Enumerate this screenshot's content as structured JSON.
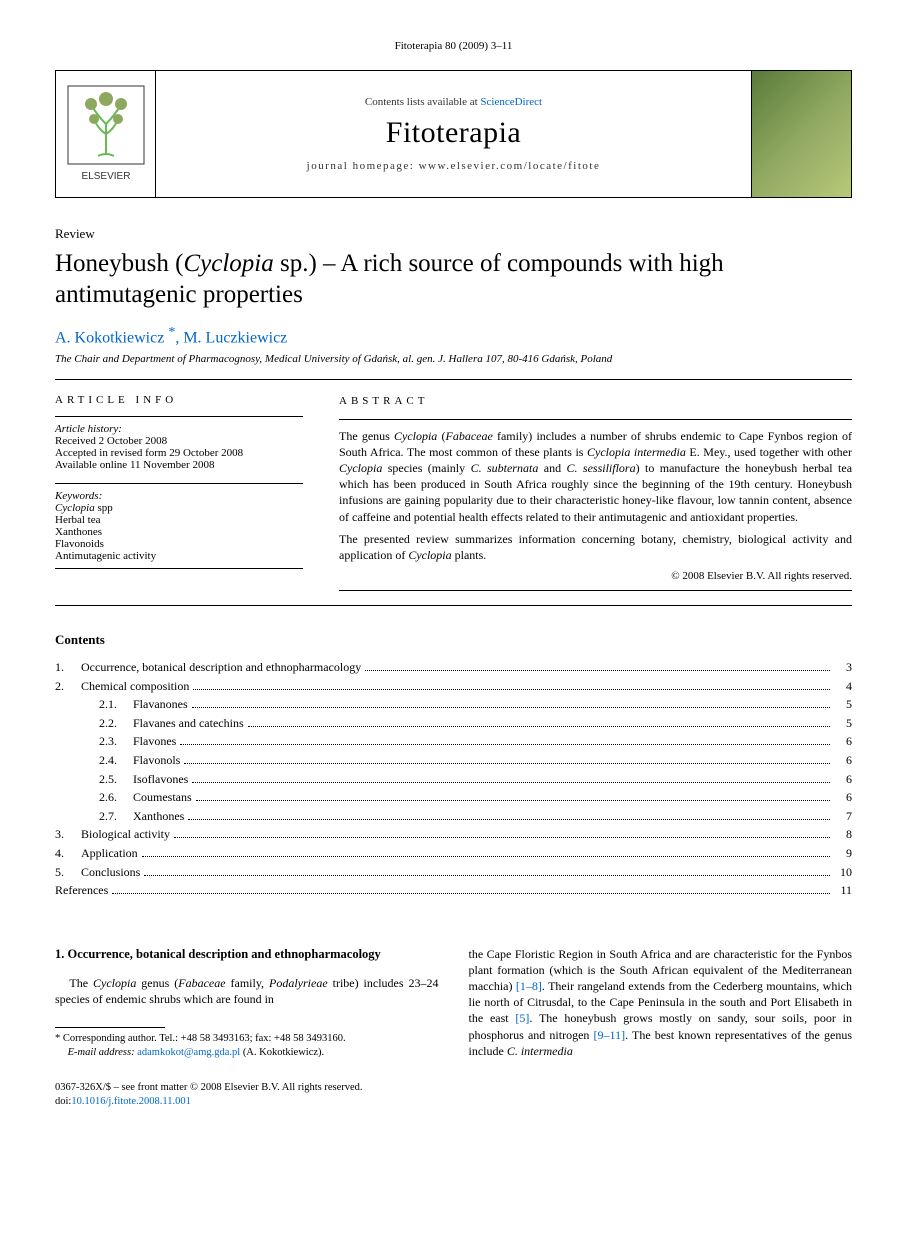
{
  "running_head": "Fitoterapia 80 (2009) 3–11",
  "header": {
    "contents_prefix": "Contents lists available at ",
    "contents_link": "ScienceDirect",
    "journal_name": "Fitoterapia",
    "homepage_label": "journal homepage: www.elsevier.com/locate/fitote",
    "publisher_label": "ELSEVIER"
  },
  "article": {
    "type": "Review",
    "title_pre": "Honeybush (",
    "title_ital": "Cyclopia",
    "title_post": " sp.) – A rich source of compounds with high antimutagenic properties",
    "author1": "A. Kokotkiewicz ",
    "author2": ", M. Luczkiewicz",
    "corr_star": "*",
    "affiliation": "The Chair and Department of Pharmacognosy, Medical University of Gdańsk, al. gen. J. Hallera 107, 80-416 Gdańsk, Poland"
  },
  "info": {
    "head": "ARTICLE INFO",
    "history_label": "Article history:",
    "received": "Received 2 October 2008",
    "accepted": "Accepted in revised form 29 October 2008",
    "online": "Available online 11 November 2008",
    "keywords_label": "Keywords:",
    "kw1_pre": "Cyclopia",
    "kw1_post": " spp",
    "kw2": "Herbal tea",
    "kw3": "Xanthones",
    "kw4": "Flavonoids",
    "kw5": "Antimutagenic activity"
  },
  "abstract": {
    "head": "ABSTRACT",
    "p1_a": "The genus ",
    "p1_b": "Cyclopia",
    "p1_c": " (",
    "p1_d": "Fabaceae",
    "p1_e": " family) includes a number of shrubs endemic to Cape Fynbos region of South Africa. The most common of these plants is ",
    "p1_f": "Cyclopia intermedia",
    "p1_g": " E. Mey., used together with other ",
    "p1_h": "Cyclopia",
    "p1_i": " species (mainly ",
    "p1_j": "C. subternata",
    "p1_k": " and ",
    "p1_l": "C. sessiliflora",
    "p1_m": ") to manufacture the honeybush herbal tea which has been produced in South Africa roughly since the beginning of the 19th century. Honeybush infusions are gaining popularity due to their characteristic honey-like flavour, low tannin content, absence of caffeine and potential health effects related to their antimutagenic and antioxidant properties.",
    "p2_a": "The presented review summarizes information concerning botany, chemistry, biological activity and application of ",
    "p2_b": "Cyclopia",
    "p2_c": " plants.",
    "copyright": "© 2008 Elsevier B.V. All rights reserved."
  },
  "contents": {
    "title": "Contents",
    "rows": [
      {
        "num": "1.",
        "label": "Occurrence, botanical description and ethnopharmacology",
        "page": "3",
        "sub": false
      },
      {
        "num": "2.",
        "label": "Chemical composition",
        "page": "4",
        "sub": false
      },
      {
        "num": "2.1.",
        "label": "Flavanones",
        "page": "5",
        "sub": true
      },
      {
        "num": "2.2.",
        "label": "Flavanes and catechins",
        "page": "5",
        "sub": true
      },
      {
        "num": "2.3.",
        "label": "Flavones",
        "page": "6",
        "sub": true
      },
      {
        "num": "2.4.",
        "label": "Flavonols",
        "page": "6",
        "sub": true
      },
      {
        "num": "2.5.",
        "label": "Isoflavones",
        "page": "6",
        "sub": true
      },
      {
        "num": "2.6.",
        "label": "Coumestans",
        "page": "6",
        "sub": true
      },
      {
        "num": "2.7.",
        "label": "Xanthones",
        "page": "7",
        "sub": true
      },
      {
        "num": "3.",
        "label": "Biological activity",
        "page": "8",
        "sub": false
      },
      {
        "num": "4.",
        "label": "Application",
        "page": "9",
        "sub": false
      },
      {
        "num": "5.",
        "label": "Conclusions",
        "page": "10",
        "sub": false
      },
      {
        "num": "",
        "label": "References",
        "page": "11",
        "sub": false
      }
    ]
  },
  "body": {
    "sec_head": "1. Occurrence, botanical description and ethnopharmacology",
    "left_a": "The ",
    "left_b": "Cyclopia",
    "left_c": " genus (",
    "left_d": "Fabaceae",
    "left_e": " family, ",
    "left_f": "Podalyrieae",
    "left_g": " tribe) includes 23–24 species of endemic shrubs which are found in",
    "right_a": "the Cape Floristic Region in South Africa and are characteristic for the Fynbos plant formation (which is the South African equivalent of the Mediterranean macchia) ",
    "right_ref1": "[1–8]",
    "right_b": ". Their rangeland extends from the Cederberg mountains, which lie north of Citrusdal, to the Cape Peninsula in the south and Port Elisabeth in the east ",
    "right_ref2": "[5]",
    "right_c": ". The honeybush grows mostly on sandy, sour soils, poor in phosphorus and nitrogen ",
    "right_ref3": "[9–11]",
    "right_d": ". The best known representatives of the genus include ",
    "right_e": "C. intermedia"
  },
  "footnote": {
    "line1_a": "* Corresponding author. Tel.: +48 58 3493163; fax: +48 58 3493160.",
    "line2_label": "E-mail address:",
    "line2_email": "adamkokot@amg.gda.pl",
    "line2_who": " (A. Kokotkiewicz)."
  },
  "bottom": {
    "line1": "0367-326X/$ – see front matter © 2008 Elsevier B.V. All rights reserved.",
    "doi_label": "doi:",
    "doi": "10.1016/j.fitote.2008.11.001"
  },
  "colors": {
    "link": "#0066cc",
    "rule": "#000000",
    "bg": "#ffffff"
  }
}
